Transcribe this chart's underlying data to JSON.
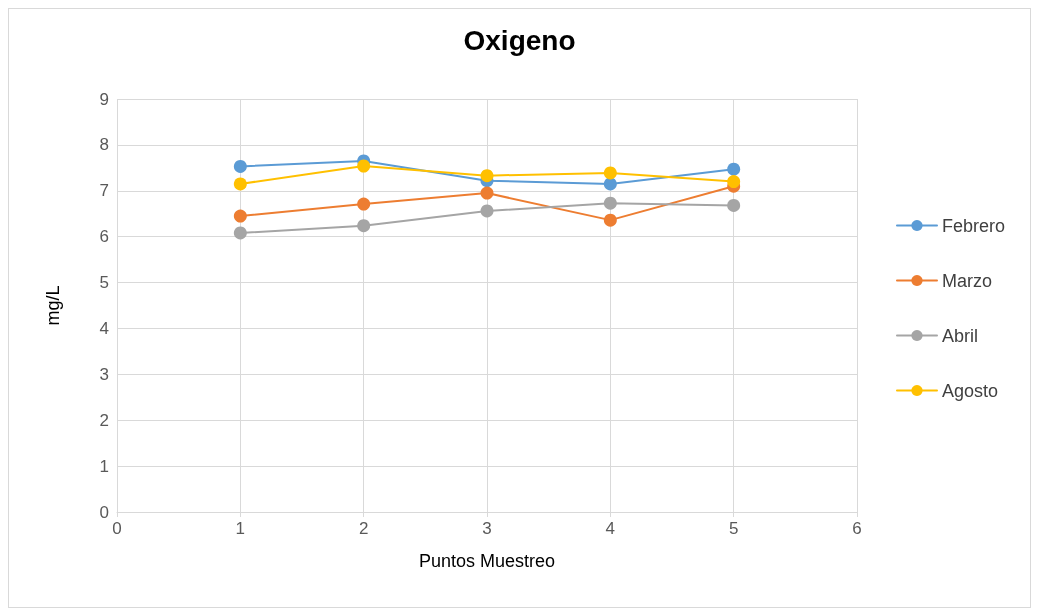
{
  "chart_data": {
    "type": "line",
    "title": "Oxigeno",
    "xlabel": "Puntos Muestreo",
    "ylabel": "mg/L",
    "x": [
      1,
      2,
      3,
      4,
      5
    ],
    "series": [
      {
        "name": "Febrero",
        "color": "#5b9bd5",
        "values": [
          7.53,
          7.65,
          7.22,
          7.15,
          7.47
        ]
      },
      {
        "name": "Marzo",
        "color": "#ed7d31",
        "values": [
          6.45,
          6.71,
          6.95,
          6.36,
          7.1
        ]
      },
      {
        "name": "Abril",
        "color": "#a5a5a5",
        "values": [
          6.08,
          6.24,
          6.56,
          6.73,
          6.68
        ]
      },
      {
        "name": "Agosto",
        "color": "#ffc000",
        "values": [
          7.15,
          7.54,
          7.33,
          7.39,
          7.2
        ]
      }
    ],
    "xlim": [
      0,
      6
    ],
    "xticks": [
      0,
      1,
      2,
      3,
      4,
      5,
      6
    ],
    "ylim": [
      0,
      9
    ],
    "yticks": [
      0,
      1,
      2,
      3,
      4,
      5,
      6,
      7,
      8,
      9
    ],
    "grid": true,
    "legend": "right",
    "marker": "circle",
    "line_style": "solid"
  }
}
